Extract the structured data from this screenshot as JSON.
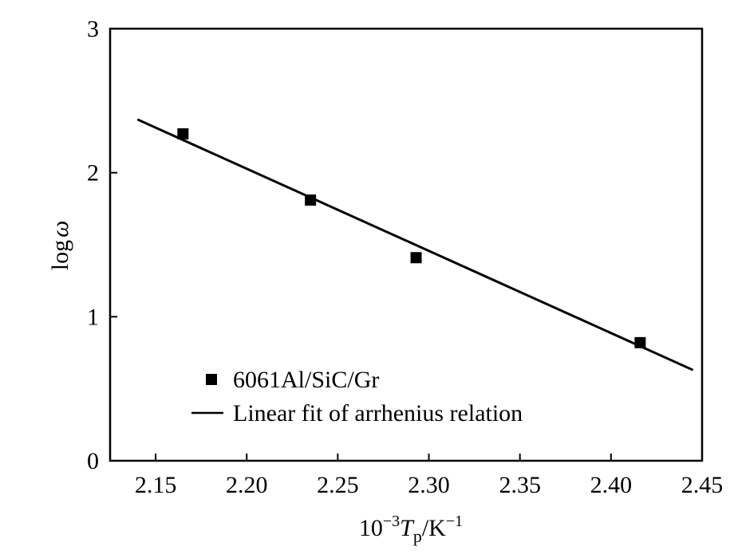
{
  "chart_data": {
    "type": "scatter",
    "xlabel": {
      "base": "10",
      "exp": "−3",
      "var": "T",
      "sub": "p",
      "unit": "/K",
      "unit_exp": "−1"
    },
    "ylabel": {
      "func": "log",
      "var": "ω"
    },
    "xlim": [
      2.125,
      2.45
    ],
    "ylim": [
      0,
      3
    ],
    "xticks": [
      2.15,
      2.2,
      2.25,
      2.3,
      2.35,
      2.4,
      2.45
    ],
    "xtick_labels": [
      "2.15",
      "2.20",
      "2.25",
      "2.30",
      "2.35",
      "2.40",
      "2.45"
    ],
    "yticks": [
      0,
      1,
      2,
      3
    ],
    "ytick_labels": [
      "0",
      "1",
      "2",
      "3"
    ],
    "grid": false,
    "legend_position": "lower-left",
    "series": [
      {
        "name": "6061Al/SiC/Gr",
        "type": "scatter",
        "marker": "square",
        "color": "#000000",
        "x": [
          2.165,
          2.235,
          2.293,
          2.416
        ],
        "y": [
          2.27,
          1.81,
          1.41,
          0.82
        ]
      },
      {
        "name": "Linear fit of arrhenius relation",
        "type": "line",
        "color": "#000000",
        "x": [
          2.14,
          2.445
        ],
        "y": [
          2.37,
          0.63
        ]
      }
    ]
  }
}
